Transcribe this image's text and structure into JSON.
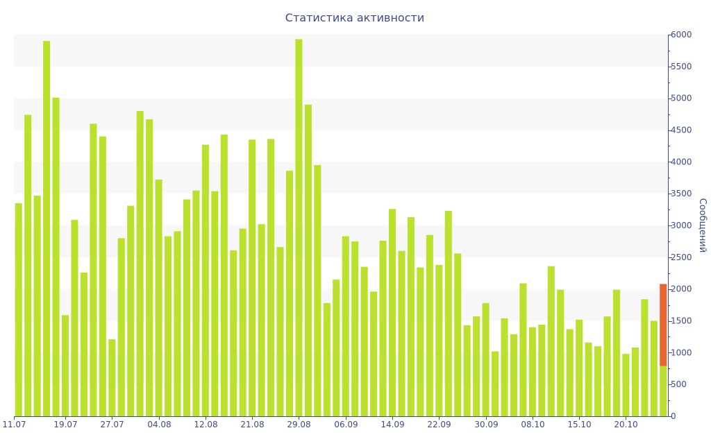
{
  "chart_data": {
    "type": "bar",
    "title": "Статистика активности",
    "xlabel": "",
    "ylabel": "Сообщений",
    "ylim": [
      0,
      6000
    ],
    "y_ticks": [
      0,
      500,
      1000,
      1500,
      2000,
      2500,
      3000,
      3500,
      4000,
      4500,
      5000,
      5500,
      6000
    ],
    "y_axis_side": "right",
    "grid": "horizontal alternating bands",
    "x_tick_labels": [
      {
        "label": "11.07",
        "index": 0
      },
      {
        "label": "19.07",
        "index": 5
      },
      {
        "label": "27.07",
        "index": 10
      },
      {
        "label": "04.08",
        "index": 15
      },
      {
        "label": "12.08",
        "index": 20
      },
      {
        "label": "21.08",
        "index": 25
      },
      {
        "label": "29.08",
        "index": 30
      },
      {
        "label": "06.09",
        "index": 35
      },
      {
        "label": "14.09",
        "index": 40
      },
      {
        "label": "22.09",
        "index": 45
      },
      {
        "label": "30.09",
        "index": 50
      },
      {
        "label": "08.10",
        "index": 55
      },
      {
        "label": "15.10",
        "index": 60
      },
      {
        "label": "20.10",
        "index": 65
      }
    ],
    "series": [
      {
        "values": [
          3350,
          4740,
          3470,
          5900,
          5010,
          1590,
          3090,
          2260,
          4600,
          4400,
          1210,
          2800,
          3310,
          4800,
          4670,
          3720,
          2830,
          2910,
          3410,
          3550,
          4270,
          3540,
          4430,
          2610,
          2950,
          4350,
          3020,
          4360,
          2660,
          3860,
          5930,
          4900,
          3950,
          1780,
          2150,
          2830,
          2750,
          2350,
          1960,
          2760,
          3260,
          2600,
          3130,
          2340,
          2850,
          2380,
          3230,
          2560,
          1430,
          1570,
          1780,
          1020,
          1540,
          1290,
          2090,
          1400,
          1440,
          2360,
          1990,
          1370,
          1520,
          1160,
          1100,
          1570,
          1990,
          980,
          1080,
          1840,
          1500,
          790
        ]
      }
    ],
    "highlight": {
      "index": 69,
      "top_value": 2080
    },
    "colors": {
      "bar": "#bbe12f",
      "highlight": "#e5662f",
      "band": "#f7f7f7",
      "axis": "#3e4a88",
      "text": "#3e4a88"
    }
  }
}
